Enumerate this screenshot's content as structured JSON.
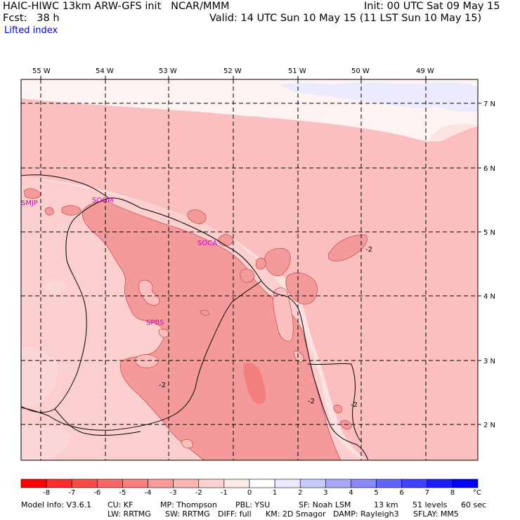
{
  "header": {
    "model_line": "HAIC-HIWC 13km ARW-GFS init   NCAR/MMM",
    "fcst_line": "Fcst:   38 h",
    "init_line": "Init: 00 UTC Sat 09 May 15",
    "valid_line": "Valid: 14 UTC Sun 10 May 15 (11 LST Sun 10 May 15)",
    "field": "Lifted index"
  },
  "axes": {
    "longitude_labels": [
      "55 W",
      "54 W",
      "53 W",
      "52 W",
      "51 W",
      "50 W",
      "49 W"
    ],
    "latitude_labels": [
      "7 N",
      "6 N",
      "5 N",
      "4 N",
      "3 N",
      "2 N"
    ]
  },
  "stations": [
    "SMJP",
    "SOGM",
    "SOCA",
    "SPBS"
  ],
  "contour_labels": [
    "-2",
    "-2",
    "-2",
    "-2"
  ],
  "colors": {
    "shade_le_-3": "#f59a9a",
    "shade_-2": "#fbbfbf",
    "shade_-1": "#fde2e2",
    "shade_0": "#fdf3f3",
    "shade_pos": "#e8e8ff",
    "grid": "#000000",
    "station_text": "#cc00cc",
    "subtitle_text": "#0000cc"
  },
  "colorbar": {
    "ticks": [
      "-8",
      "-7",
      "-6",
      "-5",
      "-4",
      "-3",
      "-2",
      "-1",
      "0",
      "1",
      "2",
      "3",
      "4",
      "5",
      "6",
      "7",
      "8"
    ],
    "unit": "°C",
    "colors": [
      "#ff0000",
      "#ff2a2a",
      "#ff4a4a",
      "#ff6464",
      "#ff7e7e",
      "#ff9a9a",
      "#ffb4b4",
      "#ffd0d0",
      "#ffeaea",
      "#ffffff",
      "#eaeaff",
      "#c8c8ff",
      "#a8a8ff",
      "#8888ff",
      "#6464ff",
      "#4040ff",
      "#1c1cff",
      "#0000ff"
    ]
  },
  "footer": {
    "line1": [
      "Model Info: V3.6.1",
      "CU: KF",
      "MP: Thompson",
      "PBL: YSU",
      "SF: Noah LSM",
      "13 km",
      "51 levels",
      "60 sec"
    ],
    "line2": [
      "LW: RRTMG",
      "SW: RRTMG",
      "DIFF: full",
      "KM: 2D Smagor",
      "DAMP: Rayleigh3",
      "SFLAY: MM5"
    ]
  }
}
